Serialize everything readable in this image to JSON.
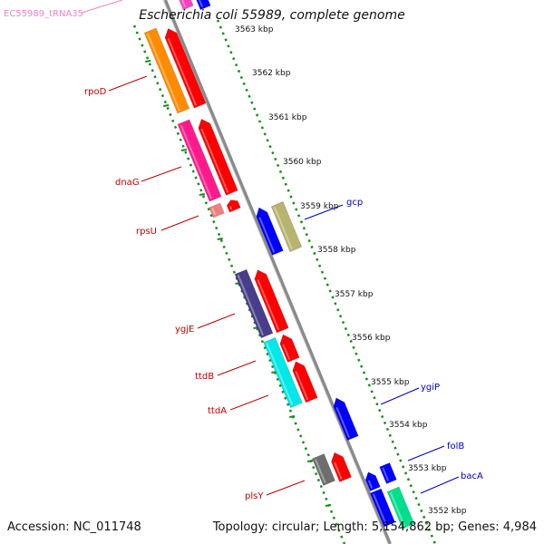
{
  "title": "Escherichia coli 55989, complete genome",
  "footer": {
    "accession_label": "Accession:",
    "accession": "NC_011748",
    "topology_label": "Topology:",
    "topology": "circular",
    "length_label": "Length:",
    "length": "5,154,862 bp",
    "genes_label": "Genes:",
    "genes": "4,984"
  },
  "ticks": [
    "3563 kbp",
    "3562 kbp",
    "3561 kbp",
    "3560 kbp",
    "3559 kbp",
    "3558 kbp",
    "3557 kbp",
    "3556 kbp",
    "3555 kbp",
    "3554 kbp",
    "3553 kbp",
    "3552 kbp"
  ],
  "gene_labels_left": [
    {
      "label": "EC55989_tRNA35",
      "color": "#f080c8"
    },
    {
      "label": "rpoD",
      "color": "#c00000"
    },
    {
      "label": "dnaG",
      "color": "#c00000"
    },
    {
      "label": "rpsU",
      "color": "#c00000"
    },
    {
      "label": "ygjE",
      "color": "#c00000"
    },
    {
      "label": "ttdB",
      "color": "#c00000"
    },
    {
      "label": "ttdA",
      "color": "#c00000"
    },
    {
      "label": "plsY",
      "color": "#c00000"
    }
  ],
  "gene_labels_right": [
    {
      "label": "gcp",
      "color": "#0000c0"
    },
    {
      "label": "ygiP",
      "color": "#0000c0"
    },
    {
      "label": "folB",
      "color": "#0000c0"
    },
    {
      "label": "bacA",
      "color": "#0000c0"
    }
  ],
  "colors": {
    "backbone": "#8c8c8c",
    "gc_dots": "#1a8c1a",
    "cds_forward": "#ff0000",
    "cds_reverse": "#0000ff"
  }
}
